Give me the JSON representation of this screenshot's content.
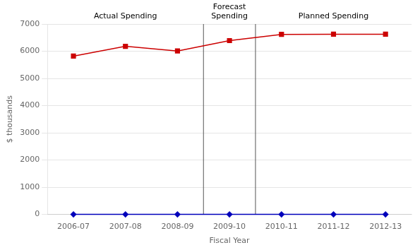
{
  "chart_data": {
    "type": "line",
    "xlabel": "Fiscal Year",
    "ylabel": "$ thousands",
    "categories": [
      "2006-07",
      "2007-08",
      "2008-09",
      "2009-10",
      "2010-11",
      "2011-12",
      "2012-13"
    ],
    "series": [
      {
        "color": "#0000BB",
        "marker": "diamond",
        "values": [
          0,
          0,
          0,
          0,
          0,
          0,
          0
        ]
      },
      {
        "color": "#CC0000",
        "marker": "square",
        "values": [
          5820,
          6180,
          6010,
          6390,
          6620,
          6625,
          6625
        ]
      }
    ],
    "ylim": [
      0,
      7000
    ],
    "yticks": [
      0,
      1000,
      2000,
      3000,
      4000,
      5000,
      6000,
      7000
    ],
    "grid": "y",
    "vlines": [
      {
        "x": 2.5,
        "color": "#555555"
      },
      {
        "x": 3.5,
        "color": "#555555"
      }
    ],
    "annotations": [
      {
        "text": "Actual Spending"
      },
      {
        "text": "Forecast\nSpending"
      },
      {
        "text": "Planned Spending"
      }
    ]
  }
}
